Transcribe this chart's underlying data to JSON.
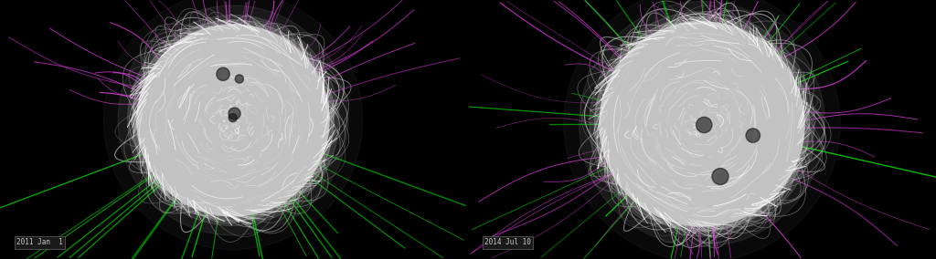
{
  "background_color": "#000000",
  "fig_width": 10.24,
  "fig_height": 2.84,
  "dpi": 100,
  "left_label": "2011 Jan  1",
  "right_label": "2014 Jul 10",
  "label_color": "#cccccc",
  "label_fontsize": 5.5,
  "magenta_color": "#cc33cc",
  "green_color": "#00cc00",
  "white_line_color": "#bbbbbb",
  "sun_base_color": "#aaaaaa",
  "np_random_seed": 7
}
